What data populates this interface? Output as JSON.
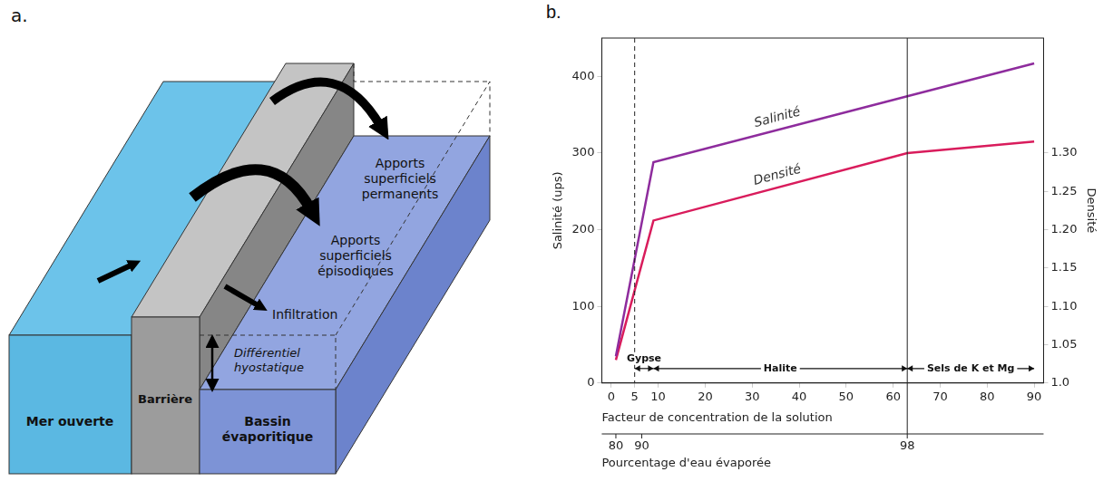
{
  "panel_a": {
    "label": "a.",
    "sea": "Mer ouverte",
    "barrier": "Barrière",
    "basin": "Bassin évaporitique",
    "inflow_permanent": "Apports superficiels permanents",
    "inflow_episodic": "Apports superficiels épisodiques",
    "infiltration": "Infiltration",
    "hydrostatic_difference": "Différentiel hyostatique"
  },
  "chart_data": {
    "label": "b.",
    "type": "line",
    "x": [
      1,
      9,
      63,
      90
    ],
    "series": [
      {
        "name": "Salinité",
        "color": "#8e2c9d",
        "values": [
          35,
          288,
          374,
          417
        ]
      },
      {
        "name": "Densité",
        "color": "#d91c5c",
        "axis": "y2",
        "values": [
          1.03,
          1.212,
          1.3,
          1.315
        ]
      }
    ],
    "xlabel": "Facteur de concentration de la solution",
    "ylabel": "Salinité (ups)",
    "y2label": "Densité",
    "xlim": [
      -2,
      92
    ],
    "xticks": [
      0,
      5,
      10,
      20,
      30,
      40,
      50,
      60,
      70,
      80,
      90
    ],
    "ylim": [
      0,
      450
    ],
    "yticks": [
      0,
      100,
      200,
      300,
      400
    ],
    "y2lim": [
      1,
      1.45
    ],
    "y2ticks": [
      {
        "value": 1,
        "label": "1.0"
      },
      1.05,
      {
        "value": 1.1,
        "label": "1.10"
      },
      1.15,
      {
        "value": 1.2,
        "label": "1.20"
      },
      1.25,
      {
        "value": 1.3,
        "label": "1.30"
      }
    ],
    "x2": {
      "label": "Pourcentage d'eau évaporée",
      "ticks": [
        {
          "value": 80,
          "at": 1
        },
        {
          "value": 90,
          "at": 6.5
        },
        {
          "value": 98,
          "at": 63
        }
      ]
    },
    "vlines": [
      {
        "x": 5,
        "line_style": "dashed"
      },
      {
        "x": 63,
        "line_style": "solid"
      }
    ],
    "annotations": [
      {
        "text": "Gypse",
        "from": 5,
        "to": 9
      },
      {
        "text": "Halite",
        "from": 9,
        "to": 63
      },
      {
        "text": "Sels de K et Mg",
        "from": 63,
        "to": 90
      }
    ],
    "grid": false
  }
}
